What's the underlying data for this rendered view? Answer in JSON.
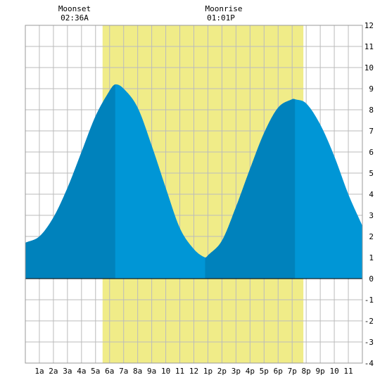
{
  "chart_data": {
    "type": "area",
    "title": "",
    "xlabel": "",
    "ylabel": "",
    "xlim": [
      0,
      24
    ],
    "ylim": [
      -4,
      12
    ],
    "y_ticks": [
      -4,
      -3,
      -2,
      -1,
      0,
      1,
      2,
      3,
      4,
      5,
      6,
      7,
      8,
      9,
      10,
      11,
      12
    ],
    "x_tick_labels": [
      {
        "hour": 1,
        "label": "1a"
      },
      {
        "hour": 2,
        "label": "2a"
      },
      {
        "hour": 3,
        "label": "3a"
      },
      {
        "hour": 4,
        "label": "4a"
      },
      {
        "hour": 5,
        "label": "5a"
      },
      {
        "hour": 6,
        "label": "6a"
      },
      {
        "hour": 7,
        "label": "7a"
      },
      {
        "hour": 8,
        "label": "8a"
      },
      {
        "hour": 9,
        "label": "9a"
      },
      {
        "hour": 10,
        "label": "10"
      },
      {
        "hour": 11,
        "label": "11"
      },
      {
        "hour": 12,
        "label": "12"
      },
      {
        "hour": 13,
        "label": "1p"
      },
      {
        "hour": 14,
        "label": "2p"
      },
      {
        "hour": 15,
        "label": "3p"
      },
      {
        "hour": 16,
        "label": "4p"
      },
      {
        "hour": 17,
        "label": "5p"
      },
      {
        "hour": 18,
        "label": "6p"
      },
      {
        "hour": 19,
        "label": "7p"
      },
      {
        "hour": 20,
        "label": "8p"
      },
      {
        "hour": 21,
        "label": "9p"
      },
      {
        "hour": 22,
        "label": "10"
      },
      {
        "hour": 23,
        "label": "11"
      }
    ],
    "grid": true,
    "moon": {
      "set_label": "Moonset",
      "set_time": "02:36A",
      "set_hour": 2.6,
      "rise_label": "Moonrise",
      "rise_time": "01:01P",
      "rise_hour": 13.02,
      "moon_up_from_hour": 5.5,
      "moon_up_to_hour": 19.8,
      "moon_up_color": "#f0ec88"
    },
    "tide_series": {
      "hours": [
        0,
        1,
        2,
        3,
        4,
        5,
        6,
        6.4,
        7,
        8,
        9,
        10,
        11,
        12,
        12.8,
        13,
        14,
        15,
        16,
        17,
        18,
        19,
        19.2,
        20,
        21,
        22,
        23,
        24
      ],
      "heights_ft": [
        1.7,
        2.0,
        2.9,
        4.3,
        6.0,
        7.7,
        8.9,
        9.2,
        9.0,
        8.1,
        6.3,
        4.3,
        2.4,
        1.4,
        1.0,
        1.1,
        1.8,
        3.4,
        5.2,
        6.9,
        8.1,
        8.5,
        8.5,
        8.3,
        7.3,
        5.8,
        4.0,
        2.5
      ]
    },
    "dark_bands": [
      {
        "from_hour": 0,
        "to_hour": 6.4
      },
      {
        "from_hour": 12.8,
        "to_hour": 19.2
      }
    ],
    "colors": {
      "tide_light": "#0096d6",
      "tide_dark": "#0082bc",
      "grid": "#bbbbbb",
      "zero_line": "#000000",
      "plot_border": "#999999"
    }
  }
}
